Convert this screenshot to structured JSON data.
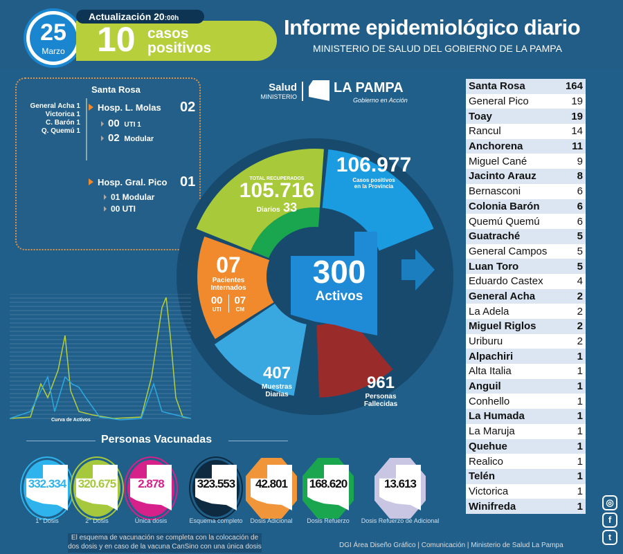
{
  "header": {
    "day": "25",
    "month": "Marzo",
    "update_label": "Actualización 20",
    "update_time": ":00h",
    "cases_count": "10",
    "cases_label_1": "casos",
    "cases_label_2": "positivos",
    "title": "Informe epidemiológico diario",
    "subtitle": "MINISTERIO DE SALUD DEL GOBIERNO DE LA PAMPA"
  },
  "logo": {
    "salud": "Salud",
    "ministerio": "MINISTERIO",
    "la_pampa": "LA PAMPA",
    "tagline": "Gobierno en Acción"
  },
  "hospitals": {
    "city": "Santa Rosa",
    "origins": [
      "General Acha 1",
      "Victorica 1",
      "C. Barón 1",
      "Q. Quemú 1"
    ],
    "molas": {
      "name": "Hosp. L. Molas",
      "total": "02",
      "uti_n": "00",
      "uti_l": "UTI 1",
      "mod_n": "02",
      "mod_l": "Modular"
    },
    "pico": {
      "name": "Hosp. Gral. Pico",
      "total": "01",
      "mod": "01 Modular",
      "uti": "00 UTI"
    }
  },
  "wheel": {
    "recuperados_label": "TOTAL RECUPERADOS",
    "recuperados": "105.716",
    "diarios_label": "Diarios",
    "diarios": "33",
    "positivos": "106.977",
    "positivos_label_1": "Casos positivos",
    "positivos_label_2": "en la Provincia",
    "internados": "07",
    "internados_label_1": "Pacientes",
    "internados_label_2": "Internados",
    "uti": "00",
    "uti_label": "UTI",
    "cm": "07",
    "cm_label": "CM",
    "activos": "300",
    "activos_label": "Activos",
    "muestras": "407",
    "muestras_label_1": "Muestras",
    "muestras_label_2": "Diarias",
    "fallecidos": "961",
    "fallecidos_label_1": "Personas",
    "fallecidos_label_2": "Fallecidas",
    "colors": {
      "green": "#a7c93a",
      "blue": "#1b9be0",
      "orange": "#f08a2c",
      "lightblue": "#3aa8e0",
      "red": "#9a2b2b"
    }
  },
  "curve": {
    "label": "Curva de Activos"
  },
  "vaccines": {
    "title": "Personas Vacunadas",
    "items": [
      {
        "value": "332.334",
        "label": "1° Dosis",
        "color": "#2eb3ec"
      },
      {
        "value": "320.675",
        "label": "2° Dosis",
        "color": "#a6c83c"
      },
      {
        "value": "2.878",
        "label": "Única dosis",
        "color": "#d6218a"
      },
      {
        "value": "323.553",
        "label": "Esquema completo",
        "color": "#0e2a40"
      },
      {
        "value": "42.801",
        "label": "Dosis Adicional",
        "color": "#f0953a"
      },
      {
        "value": "168.620",
        "label": "Dosis Refuerzo",
        "color": "#1aa64f"
      },
      {
        "value": "13.613",
        "label": "Dosis Refuerzo de Adicional",
        "color": "#c9c6e4"
      }
    ],
    "note_1": "El esquema de vacunación se completa con la colocación de",
    "note_2": "dos dosis y en caso de la vacuna CanSino con una única dosis"
  },
  "localities": [
    [
      "Santa Rosa",
      "164"
    ],
    [
      "General Pico",
      "19"
    ],
    [
      "Toay",
      "19"
    ],
    [
      "Rancul",
      "14"
    ],
    [
      "Anchorena",
      "11"
    ],
    [
      "Miguel Cané",
      "9"
    ],
    [
      "Jacinto Arauz",
      "8"
    ],
    [
      "Bernasconi",
      "6"
    ],
    [
      "Colonia Barón",
      "6"
    ],
    [
      "Quemú Quemú",
      "6"
    ],
    [
      "Guatraché",
      "5"
    ],
    [
      "General Campos",
      "5"
    ],
    [
      "Luan Toro",
      "5"
    ],
    [
      "Eduardo Castex",
      "4"
    ],
    [
      "General Acha",
      "2"
    ],
    [
      "La Adela",
      "2"
    ],
    [
      "Miguel Riglos",
      "2"
    ],
    [
      "Uriburu",
      "2"
    ],
    [
      "Alpachiri",
      "1"
    ],
    [
      "Alta Italia",
      "1"
    ],
    [
      "Anguil",
      "1"
    ],
    [
      "Conhello",
      "1"
    ],
    [
      "La Humada",
      "1"
    ],
    [
      "La Maruja",
      "1"
    ],
    [
      "Quehue",
      "1"
    ],
    [
      "Realico",
      "1"
    ],
    [
      "Telén",
      "1"
    ],
    [
      "Victorica",
      "1"
    ],
    [
      "Winifreda",
      "1"
    ]
  ],
  "footer": {
    "credits": "DGI Área Diseño Gráfico  | Comunicación | Ministerio de Salud La Pampa"
  },
  "social": [
    "instagram",
    "facebook",
    "twitter"
  ]
}
